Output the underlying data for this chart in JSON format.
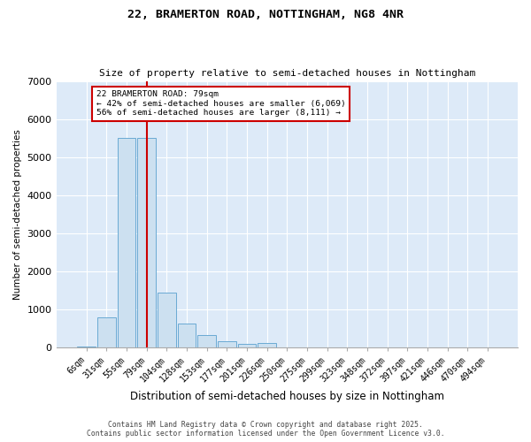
{
  "title": "22, BRAMERTON ROAD, NOTTINGHAM, NG8 4NR",
  "subtitle": "Size of property relative to semi-detached houses in Nottingham",
  "xlabel": "Distribution of semi-detached houses by size in Nottingham",
  "ylabel": "Number of semi-detached properties",
  "categories": [
    "6sqm",
    "31sqm",
    "55sqm",
    "79sqm",
    "104sqm",
    "128sqm",
    "153sqm",
    "177sqm",
    "201sqm",
    "226sqm",
    "250sqm",
    "275sqm",
    "299sqm",
    "323sqm",
    "348sqm",
    "372sqm",
    "397sqm",
    "421sqm",
    "446sqm",
    "470sqm",
    "494sqm"
  ],
  "values": [
    25,
    780,
    5500,
    5500,
    1430,
    620,
    310,
    155,
    95,
    100,
    0,
    0,
    0,
    0,
    0,
    0,
    0,
    0,
    0,
    0,
    0
  ],
  "bar_color": "#cce0f0",
  "bar_edge_color": "#6aaad4",
  "vline_index": 3,
  "vline_color": "#cc0000",
  "annotation_text": "22 BRAMERTON ROAD: 79sqm\n← 42% of semi-detached houses are smaller (6,069)\n56% of semi-detached houses are larger (8,111) →",
  "annotation_box_color": "#cc0000",
  "ylim": [
    0,
    7000
  ],
  "yticks": [
    0,
    1000,
    2000,
    3000,
    4000,
    5000,
    6000,
    7000
  ],
  "bg_color": "#ddeaf8",
  "footer_line1": "Contains HM Land Registry data © Crown copyright and database right 2025.",
  "footer_line2": "Contains public sector information licensed under the Open Government Licence v3.0."
}
